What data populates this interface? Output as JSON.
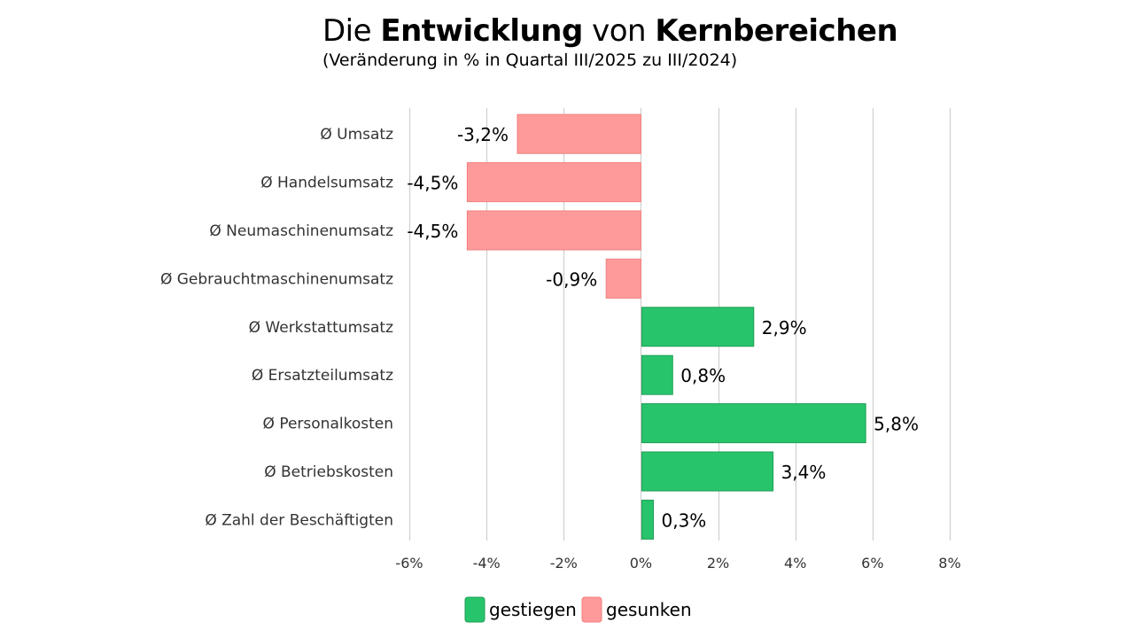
{
  "title": {
    "parts": [
      {
        "text": "Die ",
        "bold": false
      },
      {
        "text": "Entwicklung",
        "bold": true
      },
      {
        "text": " von ",
        "bold": false
      },
      {
        "text": "Kernbereichen",
        "bold": true
      }
    ],
    "subtitle": "(Veränderung in % in Quartal III/2025 zu III/2024)"
  },
  "chart_data": {
    "type": "bar",
    "orientation": "horizontal",
    "categories": [
      "Ø Umsatz",
      "Ø Handelsumsatz",
      "Ø Neumaschinenumsatz",
      "Ø Gebrauchtmaschinenumsatz",
      "Ø Werkstattumsatz",
      "Ø Ersatzteilumsatz",
      "Ø Personalkosten",
      "Ø Betriebskosten",
      "Ø Zahl der Beschäftigten"
    ],
    "values": [
      -3.2,
      -4.5,
      -4.5,
      -0.9,
      2.9,
      0.8,
      5.8,
      3.4,
      0.3
    ],
    "data_labels": [
      "-3,2%",
      "-4,5%",
      "-4,5%",
      "-0,9%",
      "2,9%",
      "0,8%",
      "5,8%",
      "3,4%",
      "0,3%"
    ],
    "xlim": [
      -6,
      8
    ],
    "xticks": [
      -6,
      -4,
      -2,
      0,
      2,
      4,
      6,
      8
    ],
    "xtick_labels": [
      "-6%",
      "-4%",
      "-2%",
      "0%",
      "2%",
      "4%",
      "6%",
      "8%"
    ],
    "grid": true,
    "legend": {
      "placement": "bottom-center",
      "items": [
        {
          "label": "gestiegen",
          "color": "#28c46c"
        },
        {
          "label": "gesunken",
          "color": "#ff9a9a"
        }
      ]
    },
    "colors": {
      "positive_fill": "#28c46c",
      "positive_stroke": "#1f9e55",
      "negative_fill": "#ff9a9a",
      "negative_stroke": "#f08080",
      "grid": "#cfcfcf",
      "axis_text": "#333333"
    }
  }
}
